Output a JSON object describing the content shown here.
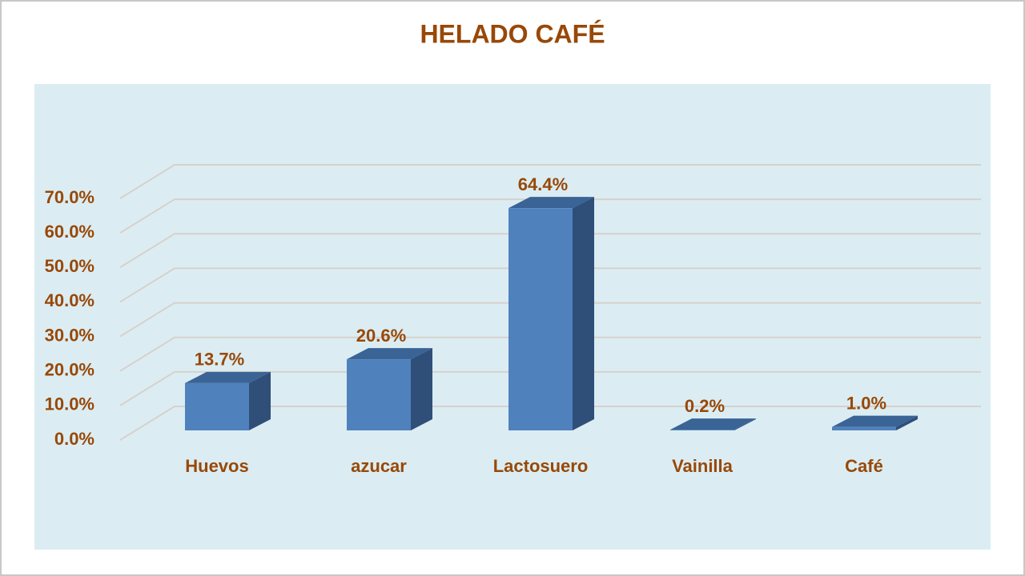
{
  "chart_data": {
    "type": "bar3d",
    "title": "HELADO CAFÉ",
    "categories": [
      "Huevos",
      "azucar",
      "Lactosuero",
      "Vainilla",
      "Café"
    ],
    "values": [
      13.7,
      20.6,
      64.4,
      0.2,
      1.0
    ],
    "value_labels": [
      "13.7%",
      "20.6%",
      "64.4%",
      "0.2%",
      "1.0%"
    ],
    "color": "#4f81bd",
    "ylim": [
      0,
      70
    ],
    "yticks": [
      {
        "value": 0,
        "label": "0.0%"
      },
      {
        "value": 10,
        "label": "10.0%"
      },
      {
        "value": 20,
        "label": "20.0%"
      },
      {
        "value": 30,
        "label": "30.0%"
      },
      {
        "value": 40,
        "label": "40.0%"
      },
      {
        "value": 50,
        "label": "50.0%"
      },
      {
        "value": 60,
        "label": "60.0%"
      },
      {
        "value": 70,
        "label": "70.0%"
      }
    ],
    "grid": true
  }
}
